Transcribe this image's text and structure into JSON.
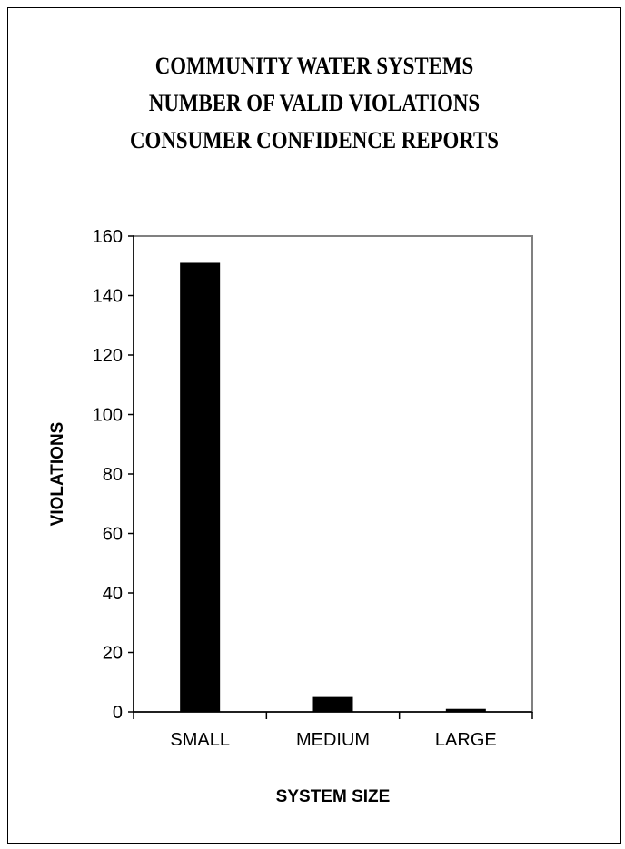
{
  "chart_data": {
    "type": "bar",
    "title_lines": [
      "COMMUNITY WATER SYSTEMS",
      "NUMBER OF VALID VIOLATIONS",
      "CONSUMER CONFIDENCE REPORTS"
    ],
    "categories": [
      "SMALL",
      "MEDIUM",
      "LARGE"
    ],
    "values": [
      151,
      5,
      1
    ],
    "xlabel": "SYSTEM SIZE",
    "ylabel": "VIOLATIONS",
    "ylim": [
      0,
      160
    ],
    "yticks": [
      0,
      20,
      40,
      60,
      80,
      100,
      120,
      140,
      160
    ],
    "grid": false,
    "legend": "none",
    "bar_color": "#000000"
  }
}
